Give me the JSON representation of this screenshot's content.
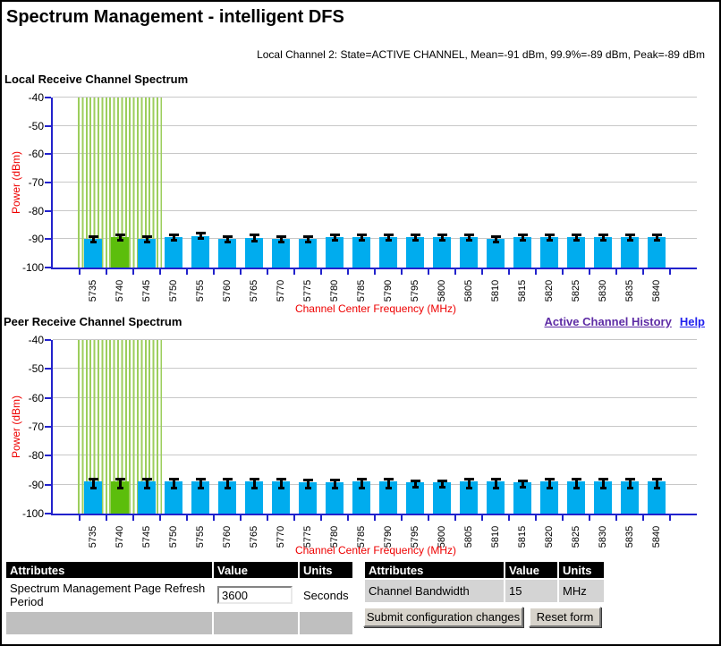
{
  "page": {
    "title": "Spectrum Management - intelligent DFS",
    "status_line": "Local Channel 2: State=ACTIVE CHANNEL, Mean=-91 dBm, 99.9%=-89 dBm, Peak=-89 dBm"
  },
  "links": {
    "active_channel_history": "Active Channel History",
    "help": "Help"
  },
  "colors": {
    "bar": "#00ACEE",
    "active_bar": "#5CBE0C",
    "stripe": "#9CCE5C",
    "axis": "#2222CC",
    "grid": "#C8C8C8",
    "red": "#EE0000",
    "link_visited": "#5E2CA5",
    "link": "#2222EE"
  },
  "chart_data": [
    {
      "type": "bar",
      "title": "Local Receive Channel Spectrum",
      "ylabel": "Power (dBm)",
      "xlabel": "Channel Center Frequency (MHz)",
      "ylim": [
        -100,
        -40
      ],
      "yticks": [
        -40,
        -50,
        -60,
        -70,
        -80,
        -90,
        -100
      ],
      "grid": true,
      "active_channel": 5740,
      "shaded_range": [
        5735,
        5745
      ],
      "categories": [
        5735,
        5740,
        5745,
        5750,
        5755,
        5760,
        5765,
        5770,
        5775,
        5780,
        5785,
        5790,
        5795,
        5800,
        5805,
        5810,
        5815,
        5820,
        5825,
        5830,
        5835,
        5840
      ],
      "values": [
        -90,
        -89.4,
        -90,
        -89.4,
        -88.8,
        -90,
        -89.5,
        -90,
        -90,
        -89.4,
        -89.4,
        -89.4,
        -89.4,
        -89.4,
        -89.4,
        -90,
        -89.4,
        -89.4,
        -89.4,
        -89.4,
        -89.4,
        -89.4
      ],
      "err_high": [
        -88.9,
        -88.3,
        -88.9,
        -88.3,
        -87.7,
        -88.9,
        -88.4,
        -88.9,
        -88.9,
        -88.3,
        -88.3,
        -88.3,
        -88.3,
        -88.3,
        -88.3,
        -88.9,
        -88.3,
        -88.3,
        -88.3,
        -88.3,
        -88.3,
        -88.3
      ],
      "err_low": [
        -91.2,
        -90.6,
        -91.2,
        -90.6,
        -90.0,
        -91.2,
        -90.7,
        -91.2,
        -91.2,
        -90.6,
        -90.6,
        -90.6,
        -90.6,
        -90.6,
        -90.6,
        -91.2,
        -90.6,
        -90.6,
        -90.6,
        -90.6,
        -90.6,
        -90.6
      ]
    },
    {
      "type": "bar",
      "title": "Peer Receive Channel Spectrum",
      "ylabel": "Power (dBm)",
      "xlabel": "Channel Center Frequency (MHz)",
      "ylim": [
        -100,
        -40
      ],
      "yticks": [
        -40,
        -50,
        -60,
        -70,
        -80,
        -90,
        -100
      ],
      "grid": true,
      "active_channel": 5740,
      "shaded_range": [
        5735,
        5745
      ],
      "categories": [
        5735,
        5740,
        5745,
        5750,
        5755,
        5760,
        5765,
        5770,
        5775,
        5780,
        5785,
        5790,
        5795,
        5800,
        5805,
        5810,
        5815,
        5820,
        5825,
        5830,
        5835,
        5840
      ],
      "values": [
        -89,
        -89,
        -89,
        -89,
        -89,
        -89,
        -89,
        -89,
        -89.3,
        -89.3,
        -89,
        -89,
        -89.3,
        -89.3,
        -89,
        -89,
        -89.3,
        -89,
        -89,
        -89,
        -89,
        -89
      ],
      "err_high": [
        -88,
        -88,
        -88,
        -88,
        -88,
        -88,
        -88,
        -88,
        -88.4,
        -88.4,
        -88,
        -88,
        -88.5,
        -88.5,
        -88,
        -88,
        -88.5,
        -88,
        -88,
        -88,
        -88,
        -88
      ],
      "err_low": [
        -91.4,
        -91.4,
        -91.4,
        -91.4,
        -91.4,
        -91.4,
        -91.4,
        -91.4,
        -91.3,
        -91.3,
        -91.4,
        -91.4,
        -91.0,
        -91.0,
        -91.4,
        -91.4,
        -91.0,
        -91.4,
        -91.4,
        -91.4,
        -91.4,
        -91.4
      ]
    }
  ],
  "tables": {
    "left": {
      "headers": [
        "Attributes",
        "Value",
        "Units"
      ],
      "rows": [
        {
          "attribute": "Spectrum Management Page Refresh Period",
          "value": "3600",
          "units": "Seconds"
        }
      ]
    },
    "right": {
      "headers": [
        "Attributes",
        "Value",
        "Units"
      ],
      "rows": [
        {
          "attribute": "Channel Bandwidth",
          "value": "15",
          "units": "MHz"
        }
      ]
    },
    "buttons": {
      "submit": "Submit configuration changes",
      "reset": "Reset form"
    }
  }
}
